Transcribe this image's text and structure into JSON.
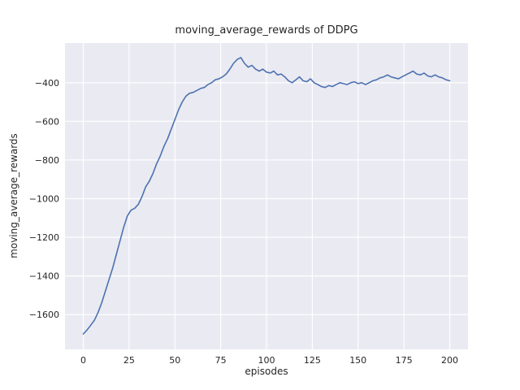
{
  "chart_data": {
    "type": "line",
    "title": "moving_average_rewards of DDPG",
    "xlabel": "episodes",
    "ylabel": "moving_average_rewards",
    "xlim": [
      -10,
      210
    ],
    "ylim": [
      -1780,
      -195
    ],
    "x_ticks": [
      0,
      25,
      50,
      75,
      100,
      125,
      150,
      175,
      200
    ],
    "y_ticks": [
      -400,
      -600,
      -800,
      -1000,
      -1200,
      -1400,
      -1600
    ],
    "grid": true,
    "legend_position": "none",
    "line_color": "#4c72b0",
    "axes_background": "#eaeaf2",
    "grid_color": "#ffffff",
    "series": [
      {
        "name": "moving_average_rewards",
        "x": [
          0,
          2,
          4,
          6,
          8,
          10,
          12,
          14,
          16,
          18,
          20,
          22,
          24,
          26,
          28,
          30,
          32,
          34,
          36,
          38,
          40,
          42,
          44,
          46,
          48,
          50,
          52,
          54,
          56,
          58,
          60,
          62,
          64,
          66,
          68,
          70,
          72,
          74,
          76,
          78,
          80,
          82,
          84,
          86,
          88,
          90,
          92,
          94,
          96,
          98,
          100,
          102,
          104,
          106,
          108,
          110,
          112,
          114,
          116,
          118,
          120,
          122,
          124,
          126,
          128,
          130,
          132,
          134,
          136,
          138,
          140,
          142,
          144,
          146,
          148,
          150,
          152,
          154,
          156,
          158,
          160,
          162,
          164,
          166,
          168,
          170,
          172,
          174,
          176,
          178,
          180,
          182,
          184,
          186,
          188,
          190,
          192,
          194,
          196,
          198,
          200
        ],
        "y": [
          -1700,
          -1680,
          -1655,
          -1630,
          -1590,
          -1540,
          -1480,
          -1420,
          -1360,
          -1290,
          -1220,
          -1150,
          -1090,
          -1060,
          -1050,
          -1030,
          -990,
          -940,
          -910,
          -870,
          -820,
          -780,
          -730,
          -690,
          -640,
          -590,
          -540,
          -500,
          -470,
          -455,
          -450,
          -440,
          -430,
          -425,
          -410,
          -400,
          -385,
          -380,
          -370,
          -355,
          -330,
          -300,
          -280,
          -270,
          -300,
          -320,
          -310,
          -330,
          -340,
          -330,
          -345,
          -350,
          -340,
          -360,
          -355,
          -370,
          -390,
          -400,
          -385,
          -370,
          -390,
          -395,
          -380,
          -400,
          -410,
          -420,
          -425,
          -415,
          -420,
          -410,
          -400,
          -405,
          -410,
          -400,
          -395,
          -405,
          -400,
          -410,
          -400,
          -390,
          -385,
          -375,
          -370,
          -360,
          -370,
          -375,
          -380,
          -370,
          -360,
          -350,
          -340,
          -355,
          -360,
          -350,
          -365,
          -370,
          -360,
          -370,
          -375,
          -385,
          -390
        ]
      }
    ]
  }
}
